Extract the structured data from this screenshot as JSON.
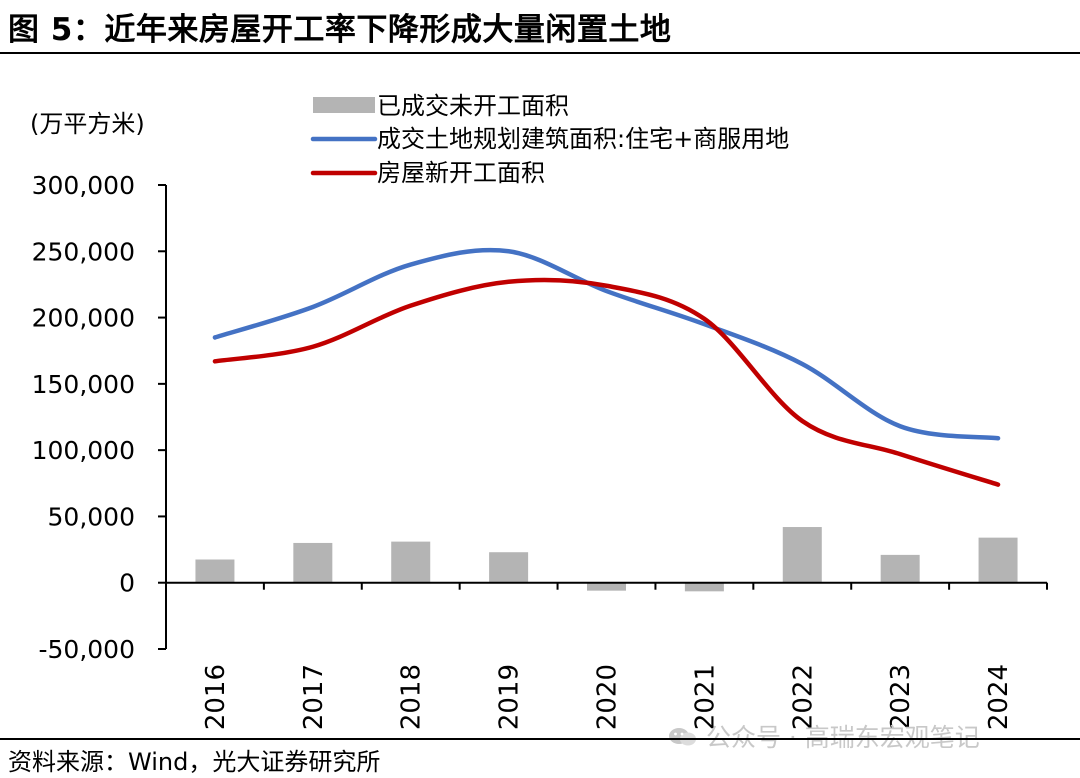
{
  "header": {
    "title": "图 5：近年来房屋开工率下降形成大量闲置土地"
  },
  "footer": {
    "source": "资料来源：Wind，光大证券研究所"
  },
  "watermark": {
    "text": "公众号 · 高瑞东宏观笔记",
    "icon": "wechat-icon"
  },
  "colors": {
    "bars": "#b4b4b4",
    "land": "#4472c4",
    "starts": "#c00000",
    "axis": "#000000",
    "watermark": "#c8c8c8"
  },
  "chart_data": {
    "type": "bar+line",
    "title": "图 5：近年来房屋开工率下降形成大量闲置土地",
    "ylabel": "(万平方米)",
    "xlabel": "",
    "ylim": [
      -50000,
      300000
    ],
    "yticks": [
      -50000,
      0,
      50000,
      100000,
      150000,
      200000,
      250000,
      300000
    ],
    "ytick_labels": [
      "-50,000",
      "0",
      "50,000",
      "100,000",
      "150,000",
      "200,000",
      "250,000",
      "300,000"
    ],
    "categories": [
      "2016",
      "2017",
      "2018",
      "2019",
      "2020",
      "2021",
      "2022",
      "2023",
      "2024"
    ],
    "grid": false,
    "legend_position": "top",
    "series": [
      {
        "name": "已成交未开工面积",
        "kind": "bar",
        "color": "#b4b4b4",
        "values": [
          17500,
          30000,
          31000,
          23000,
          -6000,
          -6500,
          42000,
          21000,
          34000
        ]
      },
      {
        "name": "成交土地规划建筑面积:住宅+商服用地",
        "kind": "line",
        "color": "#4472c4",
        "values": [
          185000,
          208000,
          240000,
          250000,
          220000,
          195000,
          165000,
          118000,
          109000
        ]
      },
      {
        "name": "房屋新开工面积",
        "kind": "line",
        "color": "#c00000",
        "values": [
          167000,
          178000,
          209000,
          227000,
          224000,
          199000,
          122000,
          97000,
          74000
        ]
      }
    ]
  }
}
